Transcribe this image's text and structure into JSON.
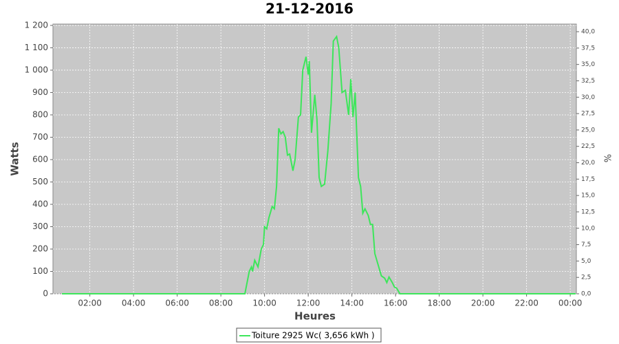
{
  "chart_data": {
    "type": "line",
    "title": "21-12-2016",
    "x_label": "Heures",
    "y_label": "Watts",
    "y2_label": "%",
    "x": [
      0.72,
      9.1,
      9.2,
      9.3,
      9.4,
      9.45,
      9.55,
      9.7,
      9.85,
      9.95,
      10.0,
      10.1,
      10.2,
      10.35,
      10.45,
      10.55,
      10.65,
      10.75,
      10.85,
      10.95,
      11.05,
      11.15,
      11.3,
      11.4,
      11.55,
      11.65,
      11.75,
      11.9,
      12.0,
      12.05,
      12.15,
      12.3,
      12.4,
      12.5,
      12.6,
      12.75,
      12.9,
      13.05,
      13.15,
      13.3,
      13.4,
      13.55,
      13.7,
      13.85,
      13.95,
      14.05,
      14.15,
      14.3,
      14.4,
      14.5,
      14.6,
      14.75,
      14.85,
      14.95,
      15.05,
      15.2,
      15.35,
      15.5,
      15.6,
      15.7,
      15.85,
      15.95,
      16.05,
      16.2,
      24.25
    ],
    "series": [
      {
        "name": "Toiture 2925 Wc( 3,656 kWh )",
        "color": "#3ce65a",
        "values": [
          0,
          0,
          50,
          100,
          120,
          100,
          150,
          120,
          200,
          220,
          300,
          290,
          340,
          390,
          380,
          480,
          740,
          715,
          725,
          700,
          620,
          625,
          550,
          600,
          790,
          800,
          1000,
          1060,
          980,
          1040,
          720,
          890,
          780,
          520,
          480,
          490,
          640,
          850,
          1130,
          1150,
          1100,
          900,
          910,
          800,
          960,
          790,
          900,
          520,
          480,
          360,
          380,
          350,
          310,
          310,
          180,
          130,
          80,
          70,
          50,
          75,
          50,
          30,
          25,
          0,
          0
        ]
      }
    ],
    "xlim": [
      0.31,
      24.28
    ],
    "xticks": [
      {
        "value": 2,
        "label": "02:00"
      },
      {
        "value": 4,
        "label": "04:00"
      },
      {
        "value": 6,
        "label": "06:00"
      },
      {
        "value": 8,
        "label": "08:00"
      },
      {
        "value": 10,
        "label": "10:00"
      },
      {
        "value": 12,
        "label": "12:00"
      },
      {
        "value": 14,
        "label": "14:00"
      },
      {
        "value": 16,
        "label": "16:00"
      },
      {
        "value": 18,
        "label": "18:00"
      },
      {
        "value": 20,
        "label": "20:00"
      },
      {
        "value": 22,
        "label": "22:00"
      },
      {
        "value": 24,
        "label": "00:00"
      }
    ],
    "ylim": [
      0,
      1206
    ],
    "yticks": [
      0,
      100,
      200,
      300,
      400,
      500,
      600,
      700,
      800,
      900,
      {
        "value": 1000,
        "label": "1 000"
      },
      {
        "value": 1100,
        "label": "1 100"
      },
      {
        "value": 1200,
        "label": "1 200"
      }
    ],
    "y2lim": [
      0,
      41.16
    ],
    "y2ticks": [
      {
        "value": 0,
        "label": "0,0"
      },
      {
        "value": 2.5,
        "label": "2,5"
      },
      {
        "value": 5,
        "label": "5,0"
      },
      {
        "value": 7.5,
        "label": "7,5"
      },
      {
        "value": 10,
        "label": "10,0"
      },
      {
        "value": 12.5,
        "label": "12,5"
      },
      {
        "value": 15,
        "label": "15,0"
      },
      {
        "value": 17.5,
        "label": "17,5"
      },
      {
        "value": 20,
        "label": "20,0"
      },
      {
        "value": 22.5,
        "label": "22,5"
      },
      {
        "value": 25,
        "label": "25,0"
      },
      {
        "value": 27.5,
        "label": "27,5"
      },
      {
        "value": 30,
        "label": "30,0"
      },
      {
        "value": 32.5,
        "label": "32,5"
      },
      {
        "value": 35,
        "label": "35,0"
      },
      {
        "value": 37.5,
        "label": "37,5"
      },
      {
        "value": 40,
        "label": "40,0"
      }
    ],
    "grid": true
  }
}
